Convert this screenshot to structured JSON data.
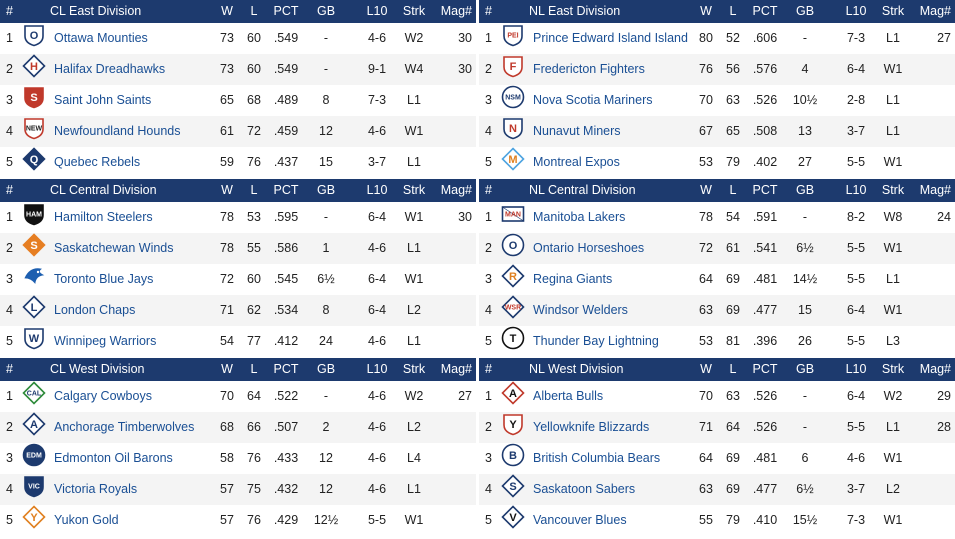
{
  "columns": {
    "num": "#",
    "w": "W",
    "l": "L",
    "pct": "PCT",
    "gb": "GB",
    "l10": "L10",
    "strk": "Strk",
    "mag": "Mag#"
  },
  "colors": {
    "header_bg": "#1d3a6e",
    "team_link": "#1a4f94",
    "row_alt": "#f4f4f4"
  },
  "divisions": [
    {
      "name": "CL East Division",
      "teams": [
        {
          "rank": "1",
          "name": "Ottawa Mounties",
          "logo": "O",
          "icon": "ottawa-mounties-logo-icon",
          "w": "73",
          "l": "60",
          "pct": ".549",
          "gb": "-",
          "l10": "4-6",
          "strk": "W2",
          "mag": "30"
        },
        {
          "rank": "2",
          "name": "Halifax Dreadhawks",
          "logo": "H",
          "icon": "halifax-dreadhawks-logo-icon",
          "w": "73",
          "l": "60",
          "pct": ".549",
          "gb": "-",
          "l10": "9-1",
          "strk": "W4",
          "mag": "30"
        },
        {
          "rank": "3",
          "name": "Saint John Saints",
          "logo": "S",
          "icon": "saint-john-saints-logo-icon",
          "w": "65",
          "l": "68",
          "pct": ".489",
          "gb": "8",
          "l10": "7-3",
          "strk": "L1",
          "mag": ""
        },
        {
          "rank": "4",
          "name": "Newfoundland Hounds",
          "logo": "NEW",
          "icon": "newfoundland-hounds-logo-icon",
          "w": "61",
          "l": "72",
          "pct": ".459",
          "gb": "12",
          "l10": "4-6",
          "strk": "W1",
          "mag": ""
        },
        {
          "rank": "5",
          "name": "Quebec Rebels",
          "logo": "Q",
          "icon": "quebec-rebels-logo-icon",
          "w": "59",
          "l": "76",
          "pct": ".437",
          "gb": "15",
          "l10": "3-7",
          "strk": "L1",
          "mag": ""
        }
      ]
    },
    {
      "name": "NL East Division",
      "teams": [
        {
          "rank": "1",
          "name": "Prince Edward Island Island",
          "logo": "PEI",
          "icon": "pei-island-logo-icon",
          "w": "80",
          "l": "52",
          "pct": ".606",
          "gb": "-",
          "l10": "7-3",
          "strk": "L1",
          "mag": "27"
        },
        {
          "rank": "2",
          "name": "Fredericton Fighters",
          "logo": "F",
          "icon": "fredericton-fighters-logo-icon",
          "w": "76",
          "l": "56",
          "pct": ".576",
          "gb": "4",
          "l10": "6-4",
          "strk": "W1",
          "mag": ""
        },
        {
          "rank": "3",
          "name": "Nova Scotia Mariners",
          "logo": "NSM",
          "icon": "nova-scotia-mariners-logo-icon",
          "w": "70",
          "l": "63",
          "pct": ".526",
          "gb": "10½",
          "l10": "2-8",
          "strk": "L1",
          "mag": ""
        },
        {
          "rank": "4",
          "name": "Nunavut Miners",
          "logo": "N",
          "icon": "nunavut-miners-logo-icon",
          "w": "67",
          "l": "65",
          "pct": ".508",
          "gb": "13",
          "l10": "3-7",
          "strk": "L1",
          "mag": ""
        },
        {
          "rank": "5",
          "name": "Montreal Expos",
          "logo": "M",
          "icon": "montreal-expos-logo-icon",
          "w": "53",
          "l": "79",
          "pct": ".402",
          "gb": "27",
          "l10": "5-5",
          "strk": "W1",
          "mag": ""
        }
      ]
    },
    {
      "name": "CL Central Division",
      "teams": [
        {
          "rank": "1",
          "name": "Hamilton Steelers",
          "logo": "HAM",
          "icon": "hamilton-steelers-logo-icon",
          "w": "78",
          "l": "53",
          "pct": ".595",
          "gb": "-",
          "l10": "6-4",
          "strk": "W1",
          "mag": "30"
        },
        {
          "rank": "2",
          "name": "Saskatchewan Winds",
          "logo": "S",
          "icon": "saskatchewan-winds-logo-icon",
          "w": "78",
          "l": "55",
          "pct": ".586",
          "gb": "1",
          "l10": "4-6",
          "strk": "L1",
          "mag": ""
        },
        {
          "rank": "3",
          "name": "Toronto Blue Jays",
          "logo": "",
          "icon": "toronto-blue-jays-logo-icon",
          "w": "72",
          "l": "60",
          "pct": ".545",
          "gb": "6½",
          "l10": "6-4",
          "strk": "W1",
          "mag": ""
        },
        {
          "rank": "4",
          "name": "London Chaps",
          "logo": "L",
          "icon": "london-chaps-logo-icon",
          "w": "71",
          "l": "62",
          "pct": ".534",
          "gb": "8",
          "l10": "6-4",
          "strk": "L2",
          "mag": ""
        },
        {
          "rank": "5",
          "name": "Winnipeg Warriors",
          "logo": "W",
          "icon": "winnipeg-warriors-logo-icon",
          "w": "54",
          "l": "77",
          "pct": ".412",
          "gb": "24",
          "l10": "4-6",
          "strk": "L1",
          "mag": ""
        }
      ]
    },
    {
      "name": "NL Central Division",
      "teams": [
        {
          "rank": "1",
          "name": "Manitoba Lakers",
          "logo": "MAN",
          "icon": "manitoba-lakers-logo-icon",
          "w": "78",
          "l": "54",
          "pct": ".591",
          "gb": "-",
          "l10": "8-2",
          "strk": "W8",
          "mag": "24"
        },
        {
          "rank": "2",
          "name": "Ontario Horseshoes",
          "logo": "O",
          "icon": "ontario-horseshoes-logo-icon",
          "w": "72",
          "l": "61",
          "pct": ".541",
          "gb": "6½",
          "l10": "5-5",
          "strk": "W1",
          "mag": ""
        },
        {
          "rank": "3",
          "name": "Regina Giants",
          "logo": "R",
          "icon": "regina-giants-logo-icon",
          "w": "64",
          "l": "69",
          "pct": ".481",
          "gb": "14½",
          "l10": "5-5",
          "strk": "L1",
          "mag": ""
        },
        {
          "rank": "4",
          "name": "Windsor Welders",
          "logo": "WSR",
          "icon": "windsor-welders-logo-icon",
          "w": "63",
          "l": "69",
          "pct": ".477",
          "gb": "15",
          "l10": "6-4",
          "strk": "W1",
          "mag": ""
        },
        {
          "rank": "5",
          "name": "Thunder Bay Lightning",
          "logo": "T",
          "icon": "thunder-bay-lightning-logo-icon",
          "w": "53",
          "l": "81",
          "pct": ".396",
          "gb": "26",
          "l10": "5-5",
          "strk": "L3",
          "mag": ""
        }
      ]
    },
    {
      "name": "CL West Division",
      "teams": [
        {
          "rank": "1",
          "name": "Calgary Cowboys",
          "logo": "CAL",
          "icon": "calgary-cowboys-logo-icon",
          "w": "70",
          "l": "64",
          "pct": ".522",
          "gb": "-",
          "l10": "4-6",
          "strk": "W2",
          "mag": "27"
        },
        {
          "rank": "2",
          "name": "Anchorage Timberwolves",
          "logo": "A",
          "icon": "anchorage-timberwolves-logo-icon",
          "w": "68",
          "l": "66",
          "pct": ".507",
          "gb": "2",
          "l10": "4-6",
          "strk": "L2",
          "mag": ""
        },
        {
          "rank": "3",
          "name": "Edmonton Oil Barons",
          "logo": "EDM",
          "icon": "edmonton-oil-barons-logo-icon",
          "w": "58",
          "l": "76",
          "pct": ".433",
          "gb": "12",
          "l10": "4-6",
          "strk": "L4",
          "mag": ""
        },
        {
          "rank": "4",
          "name": "Victoria Royals",
          "logo": "VIC",
          "icon": "victoria-royals-logo-icon",
          "w": "57",
          "l": "75",
          "pct": ".432",
          "gb": "12",
          "l10": "4-6",
          "strk": "L1",
          "mag": ""
        },
        {
          "rank": "5",
          "name": "Yukon Gold",
          "logo": "Y",
          "icon": "yukon-gold-logo-icon",
          "w": "57",
          "l": "76",
          "pct": ".429",
          "gb": "12½",
          "l10": "5-5",
          "strk": "W1",
          "mag": ""
        }
      ]
    },
    {
      "name": "NL West Division",
      "teams": [
        {
          "rank": "1",
          "name": "Alberta Bulls",
          "logo": "A",
          "icon": "alberta-bulls-logo-icon",
          "w": "70",
          "l": "63",
          "pct": ".526",
          "gb": "-",
          "l10": "6-4",
          "strk": "W2",
          "mag": "29"
        },
        {
          "rank": "2",
          "name": "Yellowknife Blizzards",
          "logo": "Y",
          "icon": "yellowknife-blizzards-logo-icon",
          "w": "71",
          "l": "64",
          "pct": ".526",
          "gb": "-",
          "l10": "5-5",
          "strk": "L1",
          "mag": "28"
        },
        {
          "rank": "3",
          "name": "British Columbia Bears",
          "logo": "B",
          "icon": "british-columbia-bears-logo-icon",
          "w": "64",
          "l": "69",
          "pct": ".481",
          "gb": "6",
          "l10": "4-6",
          "strk": "W1",
          "mag": ""
        },
        {
          "rank": "4",
          "name": "Saskatoon Sabers",
          "logo": "S",
          "icon": "saskatoon-sabers-logo-icon",
          "w": "63",
          "l": "69",
          "pct": ".477",
          "gb": "6½",
          "l10": "3-7",
          "strk": "L2",
          "mag": ""
        },
        {
          "rank": "5",
          "name": "Vancouver Blues",
          "logo": "V",
          "icon": "vancouver-blues-logo-icon",
          "w": "55",
          "l": "79",
          "pct": ".410",
          "gb": "15½",
          "l10": "7-3",
          "strk": "W1",
          "mag": ""
        }
      ]
    }
  ]
}
